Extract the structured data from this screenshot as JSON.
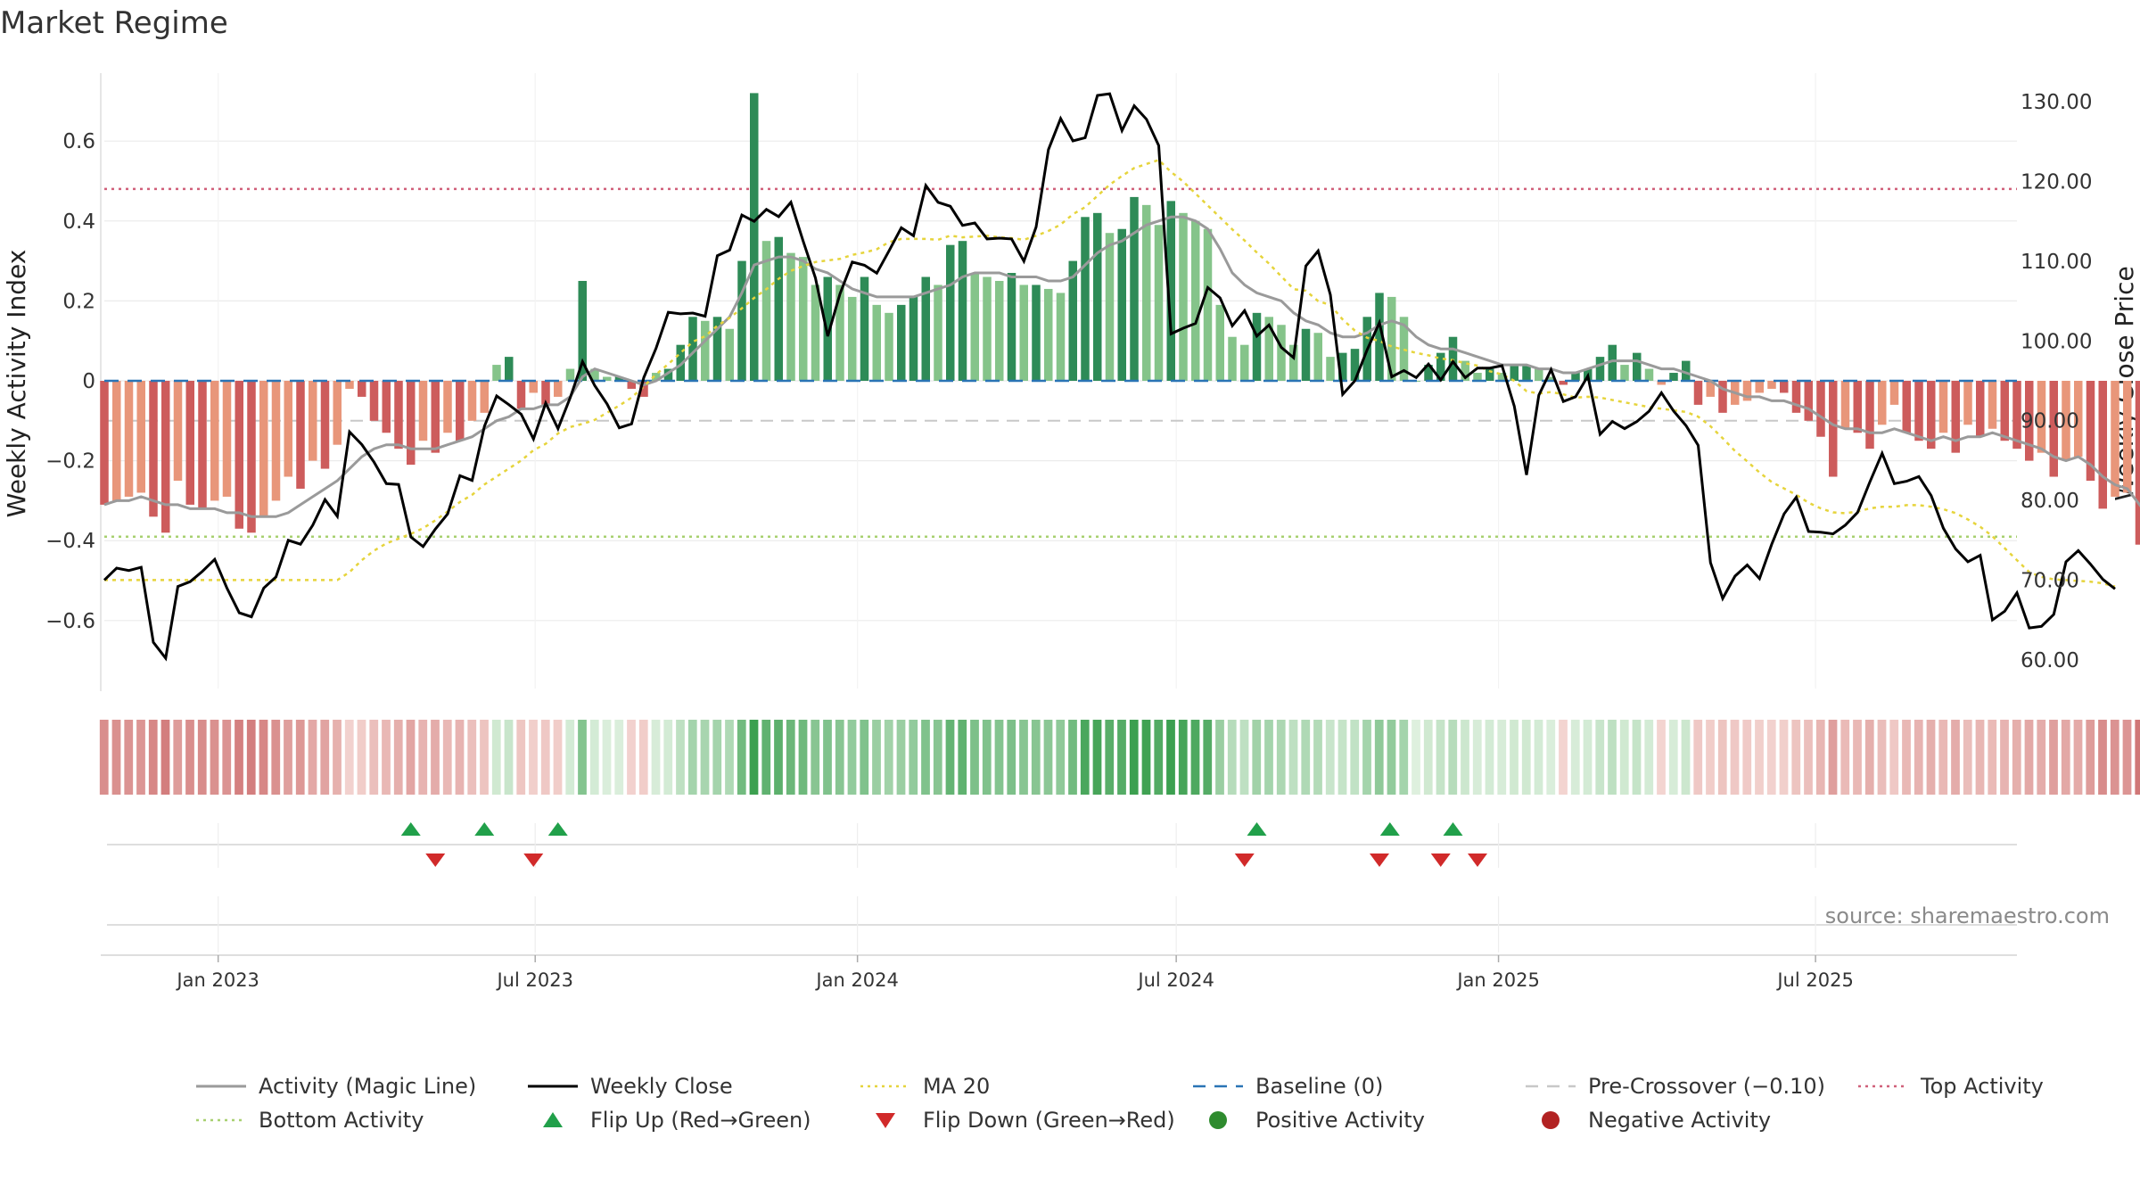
{
  "chart_data": {
    "title": "Market Regime",
    "type": "bar+line",
    "x_tick_labels": [
      "Jan 2023",
      "Jul 2023",
      "Jan 2024",
      "Jul 2024",
      "Jan 2025",
      "Jul 2025"
    ],
    "x_tick_dates": [
      "2023-01-01",
      "2023-07-01",
      "2024-01-01",
      "2024-07-01",
      "2025-01-01",
      "2025-07-01"
    ],
    "x_range": [
      "2022-10-28",
      "2025-10-24"
    ],
    "left_axis": {
      "label": "Weekly Activity Index",
      "ticks": [
        0.6,
        0.4,
        0.2,
        0,
        -0.2,
        -0.4,
        -0.6
      ],
      "tick_labels": [
        "0.6",
        "0.4",
        "0.2",
        "0",
        "−0.2",
        "−0.4",
        "−0.6"
      ],
      "range": [
        -0.77,
        0.77
      ]
    },
    "right_axis": {
      "label": "Weekly Close Price",
      "ticks": [
        130,
        120,
        110,
        100,
        90,
        80,
        70,
        60
      ],
      "tick_labels": [
        "130.00",
        "120.00",
        "110.00",
        "100.00",
        "90.00",
        "80.00",
        "70.00",
        "60.00"
      ],
      "range": [
        56.4,
        133.6
      ]
    },
    "reference_lines": {
      "top_activity": 0.48,
      "bottom_activity": -0.39,
      "pre_crossover": -0.1,
      "baseline": 0
    },
    "activity_index": [
      -0.31,
      -0.3,
      -0.29,
      -0.28,
      -0.34,
      -0.38,
      -0.25,
      -0.31,
      -0.32,
      -0.3,
      -0.29,
      -0.37,
      -0.38,
      -0.34,
      -0.3,
      -0.24,
      -0.27,
      -0.2,
      -0.22,
      -0.16,
      -0.02,
      -0.04,
      -0.1,
      -0.13,
      -0.17,
      -0.21,
      -0.15,
      -0.18,
      -0.13,
      -0.15,
      -0.1,
      -0.08,
      0.04,
      0.06,
      -0.07,
      -0.03,
      -0.06,
      -0.04,
      0.03,
      0.25,
      0.03,
      0.01,
      0.01,
      -0.02,
      -0.04,
      0.02,
      0.03,
      0.09,
      0.16,
      0.15,
      0.16,
      0.13,
      0.3,
      0.72,
      0.35,
      0.36,
      0.32,
      0.31,
      0.24,
      0.26,
      0.24,
      0.21,
      0.26,
      0.19,
      0.17,
      0.19,
      0.21,
      0.26,
      0.24,
      0.34,
      0.35,
      0.27,
      0.26,
      0.25,
      0.27,
      0.24,
      0.24,
      0.23,
      0.22,
      0.3,
      0.41,
      0.42,
      0.37,
      0.38,
      0.46,
      0.44,
      0.39,
      0.45,
      0.42,
      0.4,
      0.38,
      0.19,
      0.11,
      0.09,
      0.17,
      0.16,
      0.14,
      0.09,
      0.13,
      0.12,
      0.06,
      0.07,
      0.08,
      0.16,
      0.22,
      0.21,
      0.16,
      0.0,
      0.04,
      0.07,
      0.11,
      0.05,
      0.02,
      0.03,
      0.02,
      0.04,
      0.04,
      0.03,
      0.01,
      -0.01,
      0.02,
      0.03,
      0.06,
      0.09,
      0.04,
      0.07,
      0.03,
      -0.01,
      0.02,
      0.05,
      -0.06,
      -0.04,
      -0.08,
      -0.06,
      -0.05,
      -0.03,
      -0.02,
      -0.03,
      -0.08,
      -0.1,
      -0.14,
      -0.24,
      -0.12,
      -0.13,
      -0.17,
      -0.11,
      -0.06,
      -0.13,
      -0.15,
      -0.17,
      -0.13,
      -0.18,
      -0.11,
      -0.14,
      -0.12,
      -0.15,
      -0.17,
      -0.2,
      -0.18,
      -0.24,
      -0.2,
      -0.19,
      -0.25,
      -0.32,
      -0.29,
      -0.28,
      -0.41,
      -0.43,
      -0.41,
      -0.3,
      -0.31,
      -0.32,
      -0.34,
      -0.36,
      -0.33
    ],
    "magic_line": [
      -0.31,
      -0.3,
      -0.3,
      -0.29,
      -0.3,
      -0.31,
      -0.31,
      -0.32,
      -0.32,
      -0.32,
      -0.33,
      -0.33,
      -0.34,
      -0.34,
      -0.34,
      -0.33,
      -0.31,
      -0.29,
      -0.27,
      -0.25,
      -0.22,
      -0.19,
      -0.17,
      -0.16,
      -0.16,
      -0.17,
      -0.17,
      -0.17,
      -0.16,
      -0.15,
      -0.14,
      -0.12,
      -0.1,
      -0.09,
      -0.07,
      -0.07,
      -0.06,
      -0.06,
      -0.04,
      0.01,
      0.03,
      0.02,
      0.01,
      0.0,
      -0.01,
      0.0,
      0.02,
      0.04,
      0.07,
      0.1,
      0.13,
      0.16,
      0.22,
      0.29,
      0.3,
      0.31,
      0.31,
      0.3,
      0.28,
      0.27,
      0.25,
      0.23,
      0.22,
      0.21,
      0.21,
      0.21,
      0.21,
      0.22,
      0.23,
      0.24,
      0.26,
      0.27,
      0.27,
      0.27,
      0.26,
      0.26,
      0.26,
      0.25,
      0.25,
      0.26,
      0.29,
      0.32,
      0.34,
      0.35,
      0.37,
      0.39,
      0.4,
      0.41,
      0.41,
      0.4,
      0.38,
      0.33,
      0.27,
      0.24,
      0.22,
      0.21,
      0.2,
      0.17,
      0.15,
      0.14,
      0.12,
      0.11,
      0.11,
      0.12,
      0.14,
      0.15,
      0.14,
      0.11,
      0.09,
      0.08,
      0.08,
      0.07,
      0.06,
      0.05,
      0.04,
      0.04,
      0.04,
      0.03,
      0.03,
      0.02,
      0.02,
      0.03,
      0.04,
      0.05,
      0.05,
      0.05,
      0.04,
      0.03,
      0.03,
      0.02,
      0.01,
      0.0,
      -0.02,
      -0.03,
      -0.04,
      -0.04,
      -0.05,
      -0.05,
      -0.06,
      -0.07,
      -0.09,
      -0.11,
      -0.12,
      -0.12,
      -0.13,
      -0.13,
      -0.12,
      -0.13,
      -0.14,
      -0.15,
      -0.14,
      -0.15,
      -0.14,
      -0.14,
      -0.13,
      -0.14,
      -0.15,
      -0.16,
      -0.17,
      -0.19,
      -0.2,
      -0.19,
      -0.21,
      -0.24,
      -0.26,
      -0.27,
      -0.31,
      -0.35,
      -0.37,
      -0.29,
      -0.3,
      -0.3,
      -0.31,
      -0.32,
      -0.33
    ],
    "weekly_close": [
      70.0,
      71.5,
      71.2,
      71.6,
      62.2,
      60.2,
      69.2,
      69.8,
      71.1,
      72.6,
      69.0,
      65.9,
      65.4,
      69.0,
      70.4,
      75.0,
      74.5,
      76.9,
      80.1,
      78.0,
      88.6,
      87.0,
      84.8,
      82.1,
      82.0,
      75.4,
      74.2,
      76.4,
      78.3,
      83.1,
      82.5,
      89.3,
      93.1,
      92.0,
      90.8,
      87.7,
      92.2,
      89.0,
      92.9,
      97.4,
      94.4,
      92.1,
      89.1,
      89.6,
      95.4,
      99.1,
      103.6,
      103.4,
      103.5,
      103.1,
      110.7,
      111.4,
      115.8,
      115.0,
      116.5,
      115.6,
      117.4,
      112.5,
      107.9,
      100.6,
      105.9,
      109.9,
      109.5,
      108.5,
      111.3,
      114.2,
      113.2,
      119.5,
      117.4,
      116.9,
      114.5,
      114.8,
      112.8,
      112.9,
      112.8,
      110.0,
      114.3,
      124.0,
      127.9,
      125.1,
      125.5,
      130.8,
      131.0,
      126.4,
      129.5,
      127.8,
      124.5,
      100.9,
      101.6,
      102.2,
      106.7,
      105.4,
      101.9,
      103.8,
      100.6,
      102.0,
      99.2,
      97.9,
      109.4,
      111.3,
      105.8,
      93.3,
      95.0,
      98.9,
      102.3,
      95.5,
      96.3,
      95.4,
      97.1,
      95.1,
      97.4,
      95.4,
      96.6,
      96.6,
      96.9,
      91.8,
      83.2,
      93.2,
      96.4,
      92.4,
      93.0,
      95.6,
      88.3,
      89.9,
      89.0,
      89.9,
      91.2,
      93.5,
      91.2,
      89.4,
      86.9,
      72.2,
      67.7,
      70.5,
      71.9,
      70.2,
      74.5,
      78.3,
      80.4,
      76.1,
      76.0,
      75.8,
      76.9,
      78.5,
      82.3,
      85.9,
      82.1,
      82.4,
      83.0,
      80.6,
      76.5,
      73.9,
      72.3,
      73.1,
      65.0,
      66.1,
      68.4,
      64.0,
      64.2,
      65.7,
      72.3,
      73.7,
      72.0,
      70.1,
      68.9
    ],
    "ma20": [
      70.0,
      70.0,
      70.0,
      70.0,
      70.0,
      70.0,
      70.0,
      70.0,
      70.0,
      70.0,
      70.0,
      70.0,
      70.0,
      70.0,
      70.0,
      70.0,
      70.0,
      70.0,
      70.0,
      70.0,
      71.0,
      72.5,
      73.7,
      74.6,
      75.2,
      75.8,
      76.5,
      77.5,
      78.6,
      79.8,
      80.7,
      82.0,
      83.0,
      84.0,
      85.0,
      86.3,
      87.1,
      88.4,
      89.2,
      89.6,
      90.1,
      91.0,
      91.9,
      92.9,
      94.3,
      95.8,
      97.1,
      98.5,
      99.9,
      100.6,
      101.9,
      102.9,
      104.1,
      105.4,
      106.5,
      107.8,
      108.8,
      109.4,
      109.9,
      110.1,
      110.3,
      110.8,
      111.1,
      111.5,
      112.4,
      112.8,
      112.8,
      112.8,
      112.7,
      113.2,
      113.0,
      113.1,
      113.2,
      113.0,
      112.9,
      112.7,
      113.2,
      113.8,
      114.6,
      115.9,
      116.8,
      118.2,
      119.6,
      120.7,
      121.7,
      122.2,
      122.7,
      121.2,
      120.0,
      118.5,
      117.0,
      115.5,
      114.0,
      112.6,
      111.1,
      109.7,
      108.1,
      106.5,
      106.3,
      105.0,
      104.5,
      102.7,
      101.3,
      100.4,
      100.0,
      99.3,
      98.9,
      98.5,
      98.2,
      97.8,
      97.6,
      97.2,
      96.9,
      96.2,
      95.8,
      95.0,
      93.7,
      93.4,
      93.6,
      93.3,
      92.9,
      93.0,
      92.9,
      92.6,
      92.3,
      92.0,
      91.7,
      91.5,
      91.3,
      91.1,
      90.5,
      89.3,
      87.8,
      86.2,
      84.9,
      83.5,
      82.3,
      81.5,
      80.7,
      79.7,
      79.0,
      78.5,
      78.4,
      78.6,
      79.0,
      79.2,
      79.2,
      79.4,
      79.4,
      79.2,
      78.9,
      78.4,
      77.6,
      76.7,
      75.5,
      74.0,
      72.5,
      71.0,
      70.4,
      70.1,
      70.0,
      69.9,
      69.8,
      69.6,
      69.2
    ],
    "flip_up_dates": [
      "2023-04-21",
      "2023-06-02",
      "2023-07-14",
      "2024-08-16",
      "2024-10-31",
      "2024-12-06"
    ],
    "flip_down_dates": [
      "2023-05-05",
      "2023-06-30",
      "2024-08-09",
      "2024-10-25",
      "2024-11-29",
      "2024-12-20"
    ],
    "colors": {
      "strong_green": "#2e8b57",
      "light_green": "#85c48a",
      "strong_red": "#cd5c5c",
      "light_red": "#e8967a",
      "close": "#000000",
      "magic": "#9a9a9a",
      "ma20": "#e6d43c",
      "baseline": "#2a74b5",
      "pre_crossover": "#c8c8c8",
      "top": "#d0607a",
      "bottom": "#a8d070",
      "flip_up": "#21a04a",
      "flip_down": "#d12a2a",
      "positive": "#2e8b2e",
      "negative": "#b22222"
    },
    "source": "source: sharemaestro.com"
  },
  "legend": [
    {
      "key": "magic",
      "label": "Activity (Magic Line)",
      "style": "solid-line"
    },
    {
      "key": "close",
      "label": "Weekly Close",
      "style": "solid-line"
    },
    {
      "key": "ma20",
      "label": "MA 20",
      "style": "dotted-line"
    },
    {
      "key": "baseline",
      "label": "Baseline (0)",
      "style": "dashed-line"
    },
    {
      "key": "pre_crossover",
      "label": "Pre-Crossover (−0.10)",
      "style": "dashed-line"
    },
    {
      "key": "top",
      "label": "Top Activity",
      "style": "dotted-line"
    },
    {
      "key": "bottom",
      "label": "Bottom Activity",
      "style": "dotted-line"
    },
    {
      "key": "flip_up",
      "label": "Flip Up (Red→Green)",
      "style": "triangle-up"
    },
    {
      "key": "flip_down",
      "label": "Flip Down (Green→Red)",
      "style": "triangle-down"
    },
    {
      "key": "positive",
      "label": "Positive Activity",
      "style": "circle"
    },
    {
      "key": "negative",
      "label": "Negative Activity",
      "style": "circle"
    }
  ]
}
